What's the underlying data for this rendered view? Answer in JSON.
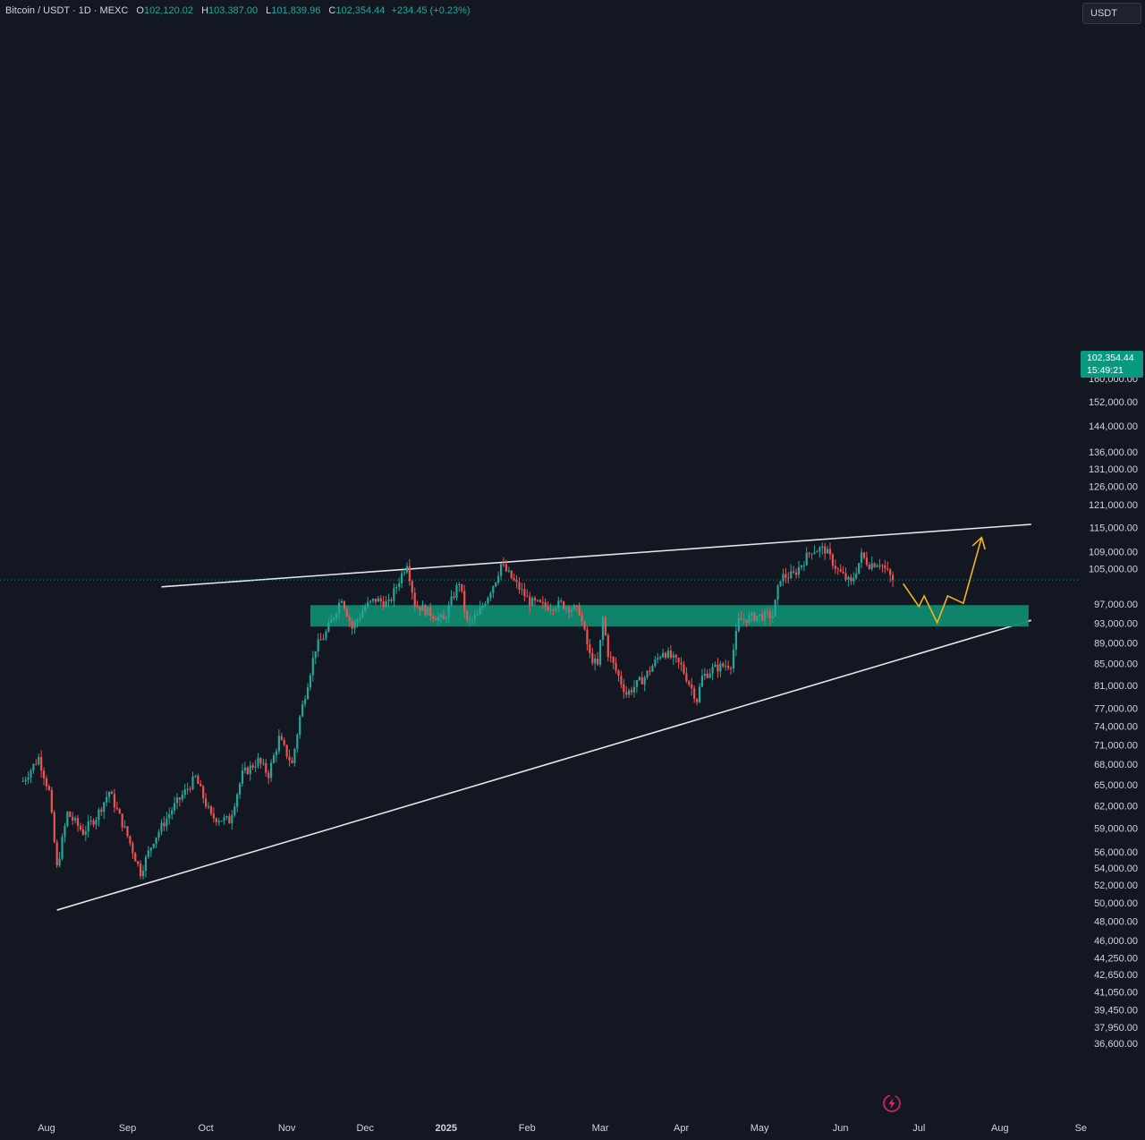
{
  "header": {
    "symbol": "Bitcoin / USDT · 1D · MEXC",
    "open_label": "O",
    "open": "102,120.02",
    "high_label": "H",
    "high": "103,387.00",
    "low_label": "L",
    "low": "101,839.96",
    "close_label": "C",
    "close": "102,354.44",
    "change": "+234.45 (+0.23%)"
  },
  "price_axis": {
    "unit": "USDT",
    "current_price": "102,354.44",
    "countdown": "15:49:21"
  },
  "colors": {
    "background": "#131722",
    "up": "#26a69a",
    "down": "#ef5350",
    "zone": "#0f8a70",
    "trendline": "#e6e6e6",
    "projection": "#f2b41e",
    "alert": "#e91e63"
  },
  "icons": {
    "alert": "lightning-alert-icon"
  },
  "chart_data": {
    "type": "candlestick",
    "scale": "log",
    "ylim": [
      36000,
      163000
    ],
    "y_ticks": [
      "160,000.00",
      "152,000.00",
      "144,000.00",
      "136,000.00",
      "131,000.00",
      "126,000.00",
      "121,000.00",
      "115,000.00",
      "109,000.00",
      "105,000.00",
      "97,000.00",
      "93,000.00",
      "89,000.00",
      "85,000.00",
      "81,000.00",
      "77,000.00",
      "74,000.00",
      "71,000.00",
      "68,000.00",
      "65,000.00",
      "62,000.00",
      "59,000.00",
      "56,000.00",
      "54,000.00",
      "52,000.00",
      "50,000.00",
      "48,000.00",
      "46,000.00",
      "44,250.00",
      "42,650.00",
      "41,050.00",
      "39,450.00",
      "37,950.00",
      "36,600.00"
    ],
    "x_ticks": [
      {
        "label": "Aug",
        "date": "2024-08-01"
      },
      {
        "label": "Sep",
        "date": "2024-09-01"
      },
      {
        "label": "Oct",
        "date": "2024-10-01"
      },
      {
        "label": "Nov",
        "date": "2024-11-01"
      },
      {
        "label": "Dec",
        "date": "2024-12-01"
      },
      {
        "label": "2025",
        "date": "2025-01-01"
      },
      {
        "label": "Feb",
        "date": "2025-02-01"
      },
      {
        "label": "Mar",
        "date": "2025-03-01"
      },
      {
        "label": "Apr",
        "date": "2025-04-01"
      },
      {
        "label": "May",
        "date": "2025-05-01"
      },
      {
        "label": "Jun",
        "date": "2025-06-01"
      },
      {
        "label": "Jul",
        "date": "2025-07-01"
      },
      {
        "label": "Aug",
        "date": "2025-08-01"
      },
      {
        "label": "Se",
        "date": "2025-09-01"
      }
    ],
    "date_range": [
      "2024-07-23",
      "2025-06-21"
    ],
    "price_path": [
      [
        "2024-07-23",
        65500
      ],
      [
        "2024-07-29",
        69000
      ],
      [
        "2024-08-02",
        64000
      ],
      [
        "2024-08-05",
        54000
      ],
      [
        "2024-08-09",
        61000
      ],
      [
        "2024-08-15",
        58500
      ],
      [
        "2024-08-20",
        60500
      ],
      [
        "2024-08-25",
        64000
      ],
      [
        "2024-09-01",
        58000
      ],
      [
        "2024-09-06",
        53500
      ],
      [
        "2024-09-11",
        57500
      ],
      [
        "2024-09-18",
        61500
      ],
      [
        "2024-09-27",
        66000
      ],
      [
        "2024-10-03",
        60500
      ],
      [
        "2024-10-10",
        60000
      ],
      [
        "2024-10-15",
        66500
      ],
      [
        "2024-10-21",
        68500
      ],
      [
        "2024-10-25",
        66500
      ],
      [
        "2024-10-29",
        72000
      ],
      [
        "2024-11-03",
        68000
      ],
      [
        "2024-11-06",
        75500
      ],
      [
        "2024-11-12",
        88000
      ],
      [
        "2024-11-16",
        91000
      ],
      [
        "2024-11-22",
        98500
      ],
      [
        "2024-11-26",
        92000
      ],
      [
        "2024-12-01",
        96500
      ],
      [
        "2024-12-05",
        98000
      ],
      [
        "2024-12-10",
        97000
      ],
      [
        "2024-12-17",
        106500
      ],
      [
        "2024-12-20",
        97000
      ],
      [
        "2024-12-26",
        95000
      ],
      [
        "2024-12-31",
        93500
      ],
      [
        "2025-01-06",
        102000
      ],
      [
        "2025-01-09",
        93000
      ],
      [
        "2025-01-13",
        94500
      ],
      [
        "2025-01-20",
        102500
      ],
      [
        "2025-01-22",
        106000
      ],
      [
        "2025-01-27",
        102000
      ],
      [
        "2025-02-02",
        97500
      ],
      [
        "2025-02-08",
        96500
      ],
      [
        "2025-02-14",
        97000
      ],
      [
        "2025-02-21",
        95500
      ],
      [
        "2025-02-25",
        86500
      ],
      [
        "2025-02-28",
        84500
      ],
      [
        "2025-03-02",
        94000
      ],
      [
        "2025-03-04",
        87000
      ],
      [
        "2025-03-11",
        79500
      ],
      [
        "2025-03-18",
        82500
      ],
      [
        "2025-03-25",
        87500
      ],
      [
        "2025-04-01",
        84500
      ],
      [
        "2025-04-07",
        78500
      ],
      [
        "2025-04-09",
        82500
      ],
      [
        "2025-04-13",
        84000
      ],
      [
        "2025-04-20",
        85000
      ],
      [
        "2025-04-23",
        93500
      ],
      [
        "2025-04-30",
        94500
      ],
      [
        "2025-05-06",
        94500
      ],
      [
        "2025-05-09",
        103000
      ],
      [
        "2025-05-14",
        103500
      ],
      [
        "2025-05-21",
        109500
      ],
      [
        "2025-05-26",
        109500
      ],
      [
        "2025-05-31",
        104500
      ],
      [
        "2025-06-05",
        101500
      ],
      [
        "2025-06-09",
        108000
      ],
      [
        "2025-06-12",
        106000
      ],
      [
        "2025-06-16",
        106500
      ],
      [
        "2025-06-21",
        102354
      ]
    ],
    "annotations": {
      "upper_trendline": [
        [
          "2024-09-14",
          100800
        ],
        [
          "2025-08-13",
          115800
        ]
      ],
      "lower_trendline": [
        [
          "2024-08-05",
          49200
        ],
        [
          "2025-08-13",
          93600
        ]
      ],
      "support_zone": {
        "from": "2024-11-10",
        "to": "2025-08-12",
        "low": 92300,
        "high": 96800
      },
      "projection_path": [
        [
          "2025-06-25",
          101500
        ],
        [
          "2025-07-01",
          96500
        ],
        [
          "2025-07-03",
          98800
        ],
        [
          "2025-07-08",
          93100
        ],
        [
          "2025-07-12",
          98800
        ],
        [
          "2025-07-18",
          97200
        ],
        [
          "2025-07-25",
          112500
        ]
      ]
    }
  }
}
